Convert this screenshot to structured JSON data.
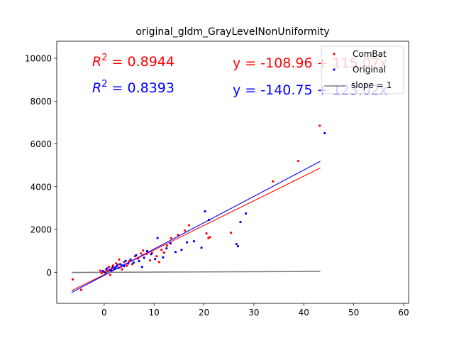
{
  "chart_data": {
    "type": "scatter",
    "title": "original_gldm_GrayLevelNonUniformity",
    "xlabel": "",
    "ylabel": "",
    "xlim": [
      -9.5,
      61
    ],
    "ylim": [
      -1450,
      10800
    ],
    "xticks": [
      0,
      10,
      20,
      30,
      40,
      50,
      60
    ],
    "yticks": [
      0,
      2000,
      4000,
      6000,
      8000,
      10000
    ],
    "grid": false,
    "legend_placement": "top-right",
    "annotations": [
      {
        "id": "r2-combat",
        "prefix": "R",
        "sup": "2",
        "value": " = 0.8944",
        "color": "#ff0000"
      },
      {
        "id": "r2-original",
        "prefix": "R",
        "sup": "2",
        "value": " = 0.8393",
        "color": "#0000ff"
      },
      {
        "id": "eq-combat",
        "text": "y = -108.96 + 115.07x",
        "color": "#ff0000"
      },
      {
        "id": "eq-original",
        "text": "y = -140.75 + 123.02x",
        "color": "#0000ff"
      }
    ],
    "series": [
      {
        "name": "ComBat",
        "kind": "points",
        "color": "#ff0000",
        "points": [
          [
            -6.3,
            -330
          ],
          [
            -4.6,
            -820
          ],
          [
            -0.8,
            80
          ],
          [
            -0.5,
            -40
          ],
          [
            0,
            20
          ],
          [
            0.4,
            130
          ],
          [
            0.7,
            60
          ],
          [
            1.0,
            260
          ],
          [
            1.2,
            -120
          ],
          [
            1.5,
            170
          ],
          [
            1.8,
            320
          ],
          [
            2.1,
            190
          ],
          [
            2.4,
            420
          ],
          [
            2.7,
            360
          ],
          [
            3.0,
            600
          ],
          [
            3.3,
            250
          ],
          [
            3.6,
            140
          ],
          [
            4.0,
            480
          ],
          [
            4.5,
            310
          ],
          [
            5.0,
            520
          ],
          [
            5.6,
            380
          ],
          [
            6.2,
            750
          ],
          [
            6.8,
            640
          ],
          [
            7.4,
            880
          ],
          [
            7.8,
            1020
          ],
          [
            8.5,
            860
          ],
          [
            9.2,
            560
          ],
          [
            9.6,
            900
          ],
          [
            10.5,
            750
          ],
          [
            11.0,
            480
          ],
          [
            11.5,
            1050
          ],
          [
            12.0,
            920
          ],
          [
            12.6,
            1250
          ],
          [
            13.4,
            1600
          ],
          [
            14.8,
            1750
          ],
          [
            16.2,
            1950
          ],
          [
            17.0,
            2200
          ],
          [
            20.5,
            1820
          ],
          [
            20.9,
            1600
          ],
          [
            21.2,
            1650
          ],
          [
            25.4,
            1850
          ],
          [
            33.8,
            4250
          ],
          [
            38.9,
            5200
          ],
          [
            43.2,
            6850
          ]
        ]
      },
      {
        "name": "Original",
        "kind": "points",
        "color": "#0000ff",
        "points": [
          [
            -0.3,
            60
          ],
          [
            0.2,
            0
          ],
          [
            0.6,
            180
          ],
          [
            1.1,
            110
          ],
          [
            1.4,
            90
          ],
          [
            1.7,
            250
          ],
          [
            2.0,
            150
          ],
          [
            2.3,
            240
          ],
          [
            2.6,
            310
          ],
          [
            2.9,
            200
          ],
          [
            3.2,
            380
          ],
          [
            3.6,
            320
          ],
          [
            4.0,
            290
          ],
          [
            4.3,
            530
          ],
          [
            4.8,
            410
          ],
          [
            5.3,
            600
          ],
          [
            5.9,
            450
          ],
          [
            6.4,
            800
          ],
          [
            7.0,
            520
          ],
          [
            7.6,
            250
          ],
          [
            8.0,
            680
          ],
          [
            8.6,
            990
          ],
          [
            9.4,
            850
          ],
          [
            10.2,
            620
          ],
          [
            10.7,
            1600
          ],
          [
            11.8,
            700
          ],
          [
            12.5,
            1120
          ],
          [
            13.3,
            1350
          ],
          [
            14.3,
            950
          ],
          [
            15.5,
            1050
          ],
          [
            16.6,
            1400
          ],
          [
            18.0,
            1450
          ],
          [
            19.5,
            1150
          ],
          [
            20.2,
            2850
          ],
          [
            21.0,
            2450
          ],
          [
            26.5,
            1320
          ],
          [
            26.8,
            1220
          ],
          [
            27.3,
            2350
          ],
          [
            28.4,
            2750
          ],
          [
            44.2,
            6500
          ]
        ]
      },
      {
        "name": "",
        "kind": "fit",
        "color": "#ff0000",
        "intercept": -108.96,
        "slope": 115.07,
        "x_range": [
          -6.5,
          43.3
        ]
      },
      {
        "name": "",
        "kind": "fit",
        "color": "#0000ff",
        "intercept": -140.75,
        "slope": 123.02,
        "x_range": [
          -6.5,
          43.3
        ]
      },
      {
        "name": "slope = 1",
        "kind": "line",
        "color": "#808080",
        "points": [
          [
            -6.5,
            -6.5
          ],
          [
            43.3,
            43.3
          ]
        ]
      }
    ],
    "legend": [
      {
        "label": "ComBat",
        "color": "#ff0000",
        "marker": "point"
      },
      {
        "label": "Original",
        "color": "#0000ff",
        "marker": "point"
      },
      {
        "label": "slope = 1",
        "color": "#808080",
        "marker": "line"
      }
    ]
  }
}
